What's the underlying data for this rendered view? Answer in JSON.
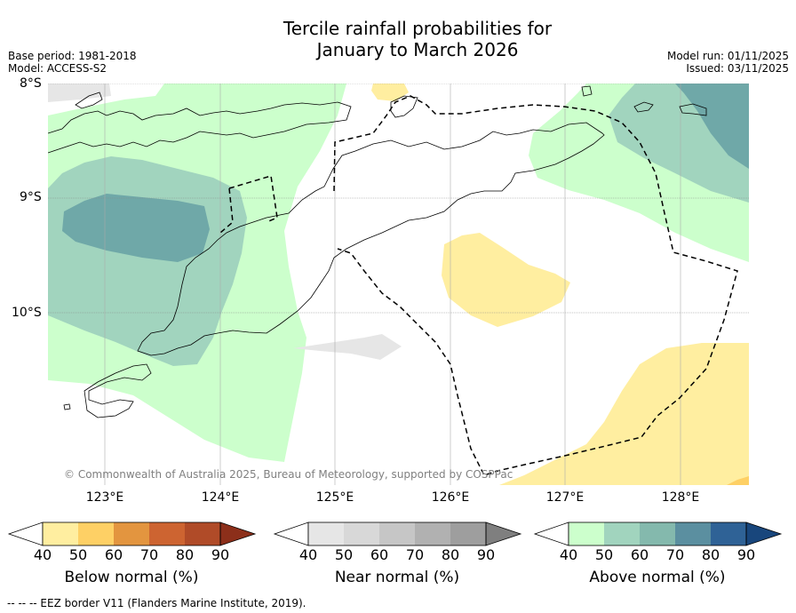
{
  "title": {
    "line1": "Tercile rainfall probabilities for",
    "line2": "January to March 2026"
  },
  "meta": {
    "base_period": "Base period: 1981-2018",
    "model": "Model: ACCESS-S2",
    "model_run": "Model run: 01/11/2025",
    "issued": "Issued: 03/11/2025"
  },
  "map": {
    "lat_labels": [
      "8°S",
      "9°S",
      "10°S"
    ],
    "lon_labels": [
      "123°E",
      "124°E",
      "125°E",
      "126°E",
      "127°E",
      "128°E"
    ],
    "copyright": "© Commonwealth of Australia 2025, Bureau of Meteorology, supported by COSPPac"
  },
  "colorbars": [
    {
      "label": "Below normal (%)",
      "ticks": [
        "40",
        "50",
        "60",
        "70",
        "80",
        "90"
      ],
      "colors": [
        "#ffffff",
        "#ffeea0",
        "#fed065",
        "#e3953f",
        "#cd6431",
        "#b04b28",
        "#8c2f1a"
      ]
    },
    {
      "label": "Near normal (%)",
      "ticks": [
        "40",
        "50",
        "60",
        "70",
        "80",
        "90"
      ],
      "colors": [
        "#ffffff",
        "#e6e6e6",
        "#d8d8d8",
        "#c6c6c6",
        "#b1b1b1",
        "#9e9e9e",
        "#7f7f7f"
      ]
    },
    {
      "label": "Above normal (%)",
      "ticks": [
        "40",
        "50",
        "60",
        "70",
        "80",
        "90"
      ],
      "colors": [
        "#ffffff",
        "#ccffcc",
        "#a1d4be",
        "#84b9ad",
        "#5b8fa0",
        "#2f6296",
        "#18467c"
      ]
    }
  ],
  "footer": "--  --  -- EEZ border V11 (Flanders Marine Institute, 2019)."
}
